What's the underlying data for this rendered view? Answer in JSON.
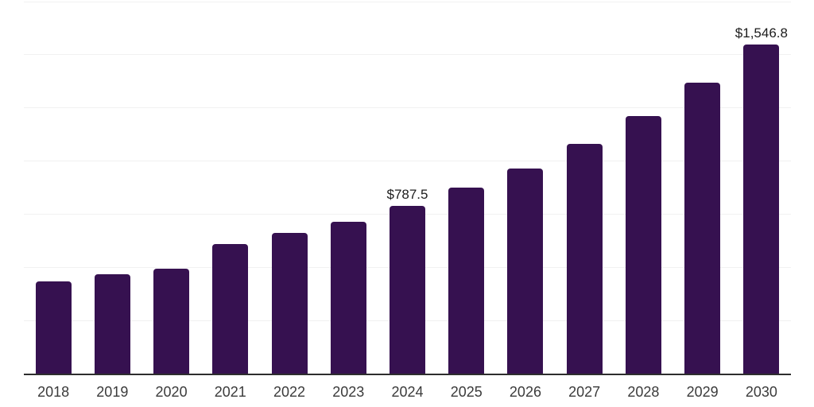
{
  "chart_data": {
    "type": "bar",
    "title": "",
    "xlabel": "",
    "ylabel": "",
    "categories": [
      "2018",
      "2019",
      "2020",
      "2021",
      "2022",
      "2023",
      "2024",
      "2025",
      "2026",
      "2027",
      "2028",
      "2029",
      "2030"
    ],
    "values": [
      435,
      467,
      492,
      611,
      661,
      714,
      787.5,
      875,
      966,
      1082,
      1212,
      1369,
      1546.8
    ],
    "data_labels": [
      "",
      "",
      "",
      "",
      "",
      "",
      "$787.5",
      "",
      "",
      "",
      "",
      "",
      "$1,546.8"
    ],
    "ylim": [
      0,
      1750
    ],
    "grid_step": 250,
    "grid": "horizontal gridlines, no y-axis tick labels, no legend, no title",
    "legend_position": "none",
    "colors": {
      "bar": "#361150",
      "axis_line": "#2e2e2e",
      "gridline": "#f1f1f1",
      "tick_label": "#3b3b3b",
      "value_label": "#1c1c1c",
      "background": "#ffffff"
    }
  }
}
